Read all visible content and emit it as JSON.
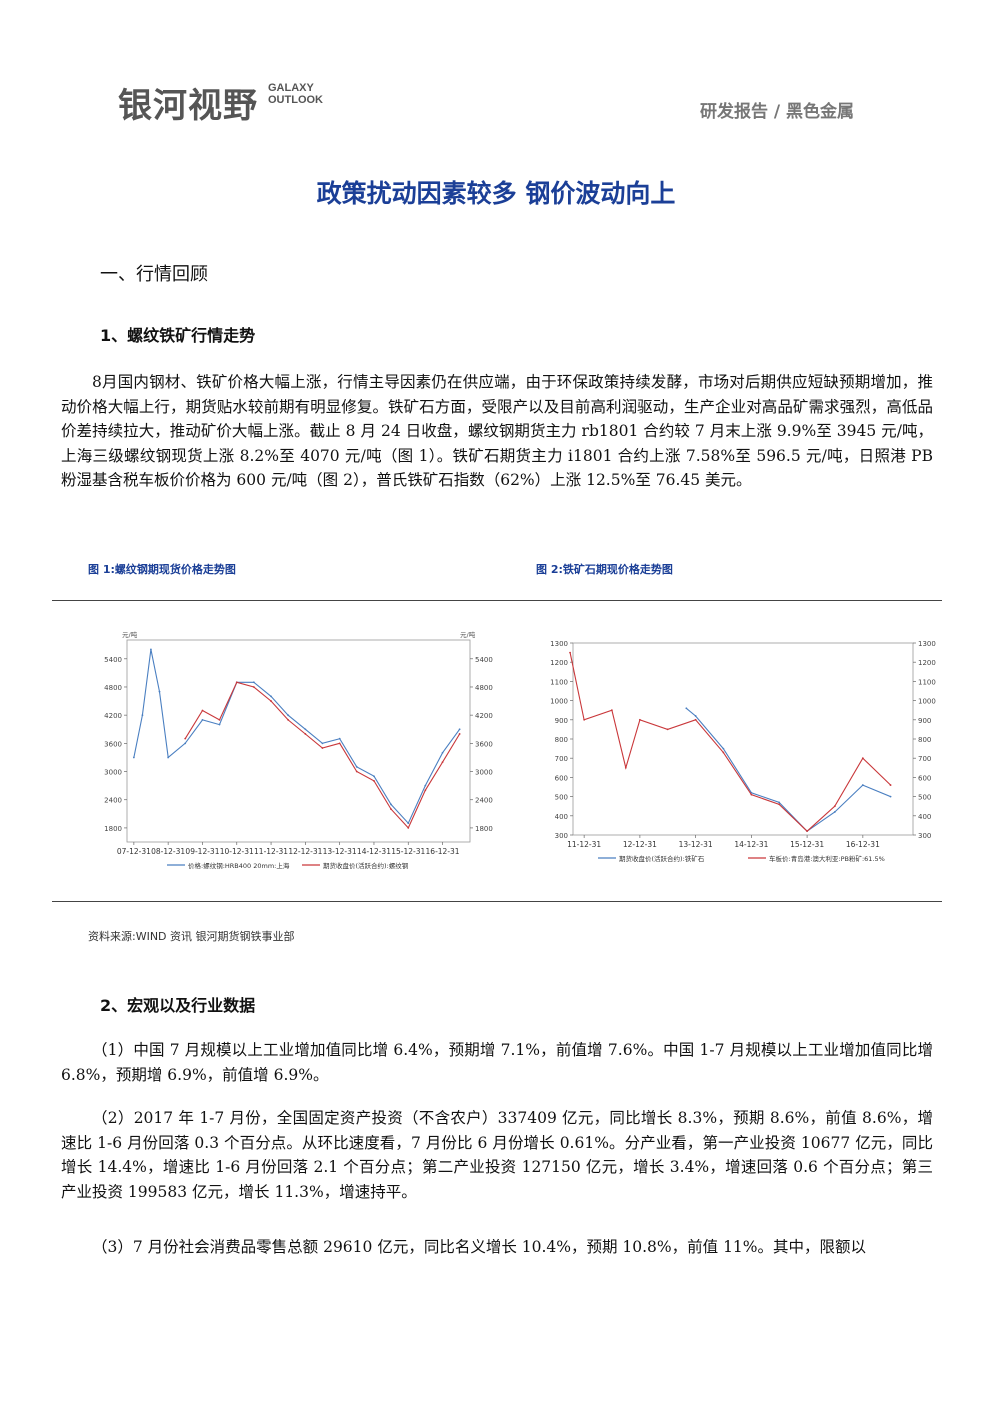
{
  "header": {
    "logo_cn": "银河视野",
    "logo_en_line1": "GALAXY",
    "logo_en_line2": "OUTLOOK",
    "category": "研发报告 / 黑色金属"
  },
  "title": "政策扰动因素较多 钢价波动向上",
  "section1": {
    "heading": "一、行情回顾"
  },
  "subsection1": {
    "heading": "1、螺纹铁矿行情走势",
    "paragraph": "8月国内钢材、铁矿价格大幅上涨，行情主导因素仍在供应端，由于环保政策持续发酵，市场对后期供应短缺预期增加，推动价格大幅上行，期货贴水较前期有明显修复。铁矿石方面，受限产以及目前高利润驱动，生产企业对高品矿需求强烈，高低品价差持续拉大，推动矿价大幅上涨。截止 8 月 24 日收盘，螺纹钢期货主力 rb1801 合约较 7 月末上涨 9.9%至 3945 元/吨，上海三级螺纹钢现货上涨 8.2%至 4070 元/吨（图 1）。铁矿石期货主力 i1801 合约上涨 7.58%至 596.5 元/吨，日照港 PB 粉湿基含税车板价价格为 600 元/吨（图 2），普氏铁矿石指数（62%）上涨 12.5%至 76.45 美元。"
  },
  "figures": {
    "fig1_caption": "图 1:螺纹钢期现货价格走势图",
    "fig2_caption": "图 2:铁矿石期现价格走势图",
    "source": "资料来源:WIND 资讯   银河期货钢铁事业部"
  },
  "chart_data": [
    {
      "type": "line",
      "title": "",
      "ylabel_left": "元/吨",
      "ylabel_right": "元/吨",
      "y_ticks": [
        1800,
        2400,
        3000,
        3600,
        4200,
        4800,
        5400
      ],
      "x_ticks": [
        "07-12-31",
        "08-12-31",
        "09-12-31",
        "10-12-31",
        "11-12-31",
        "12-12-31",
        "13-12-31",
        "14-12-31",
        "15-12-31",
        "16-12-31"
      ],
      "ylim": [
        1500,
        5800
      ],
      "series": [
        {
          "name": "价格:螺纹钢:HRB400 20mm:上海",
          "color": "#4a7fc1",
          "x": [
            "07-12-31",
            "08-03-31",
            "08-06-30",
            "08-09-30",
            "08-12-31",
            "09-06-30",
            "09-12-31",
            "10-06-30",
            "10-12-31",
            "11-06-30",
            "11-12-31",
            "12-06-30",
            "12-12-31",
            "13-06-30",
            "13-12-31",
            "14-06-30",
            "14-12-31",
            "15-06-30",
            "15-12-31",
            "16-06-30",
            "16-12-31",
            "17-06-30"
          ],
          "values": [
            3300,
            4200,
            5600,
            4700,
            3300,
            3600,
            4100,
            4000,
            4900,
            4900,
            4600,
            4200,
            3900,
            3600,
            3700,
            3100,
            2900,
            2300,
            1900,
            2700,
            3400,
            3900
          ]
        },
        {
          "name": "期货收盘价(活跃合约):螺纹钢",
          "color": "#c9373a",
          "x": [
            "09-06-30",
            "09-12-31",
            "10-06-30",
            "10-12-31",
            "11-06-30",
            "11-12-31",
            "12-06-30",
            "12-12-31",
            "13-06-30",
            "13-12-31",
            "14-06-30",
            "14-12-31",
            "15-06-30",
            "15-12-31",
            "16-06-30",
            "16-12-31",
            "17-06-30"
          ],
          "values": [
            3700,
            4300,
            4100,
            4900,
            4800,
            4500,
            4100,
            3800,
            3500,
            3600,
            3000,
            2800,
            2200,
            1800,
            2600,
            3200,
            3800
          ]
        }
      ]
    },
    {
      "type": "line",
      "title": "",
      "y_ticks": [
        300,
        400,
        500,
        600,
        700,
        800,
        900,
        1000,
        1100,
        1200,
        1300
      ],
      "x_ticks": [
        "11-12-31",
        "12-12-31",
        "13-12-31",
        "14-12-31",
        "15-12-31",
        "16-12-31"
      ],
      "ylim": [
        300,
        1300
      ],
      "series": [
        {
          "name": "期货收盘价(活跃合约):铁矿石",
          "color": "#4a7fc1",
          "x": [
            "13-10-31",
            "13-12-31",
            "14-06-30",
            "14-12-31",
            "15-06-30",
            "15-12-31",
            "16-06-30",
            "16-12-31",
            "17-06-30"
          ],
          "values": [
            960,
            920,
            750,
            520,
            470,
            320,
            420,
            560,
            500
          ]
        },
        {
          "name": "车板价:青岛港:澳大利亚:PB粉矿:61.5%",
          "color": "#c9373a",
          "x": [
            "11-09-30",
            "11-12-31",
            "12-06-30",
            "12-09-30",
            "12-12-31",
            "13-06-30",
            "13-12-31",
            "14-06-30",
            "14-12-31",
            "15-06-30",
            "15-12-31",
            "16-06-30",
            "16-12-31",
            "17-06-30"
          ],
          "values": [
            1250,
            900,
            950,
            650,
            900,
            850,
            900,
            730,
            510,
            460,
            320,
            450,
            700,
            560
          ]
        }
      ]
    }
  ],
  "subsection2": {
    "heading": "2、宏观以及行业数据",
    "p1": "（1）中国 7 月规模以上工业增加值同比增 6.4%，预期增 7.1%，前值增 7.6%。中国 1-7 月规模以上工业增加值同比增 6.8%，预期增 6.9%，前值增 6.9%。",
    "p2": "（2）2017 年 1-7 月份，全国固定资产投资（不含农户）337409 亿元，同比增长 8.3%，预期 8.6%，前值 8.6%，增速比 1-6 月份回落 0.3 个百分点。从环比速度看，7 月份比 6 月份增长 0.61%。分产业看，第一产业投资 10677 亿元，同比增长 14.4%，增速比 1-6 月份回落 2.1 个百分点；第二产业投资 127150 亿元，增长 3.4%，增速回落 0.6 个百分点；第三产业投资 199583 亿元，增长 11.3%，增速持平。",
    "p3": "（3）7 月份社会消费品零售总额 29610 亿元，同比名义增长 10.4%，预期 10.8%，前值 11%。其中，限额以"
  }
}
